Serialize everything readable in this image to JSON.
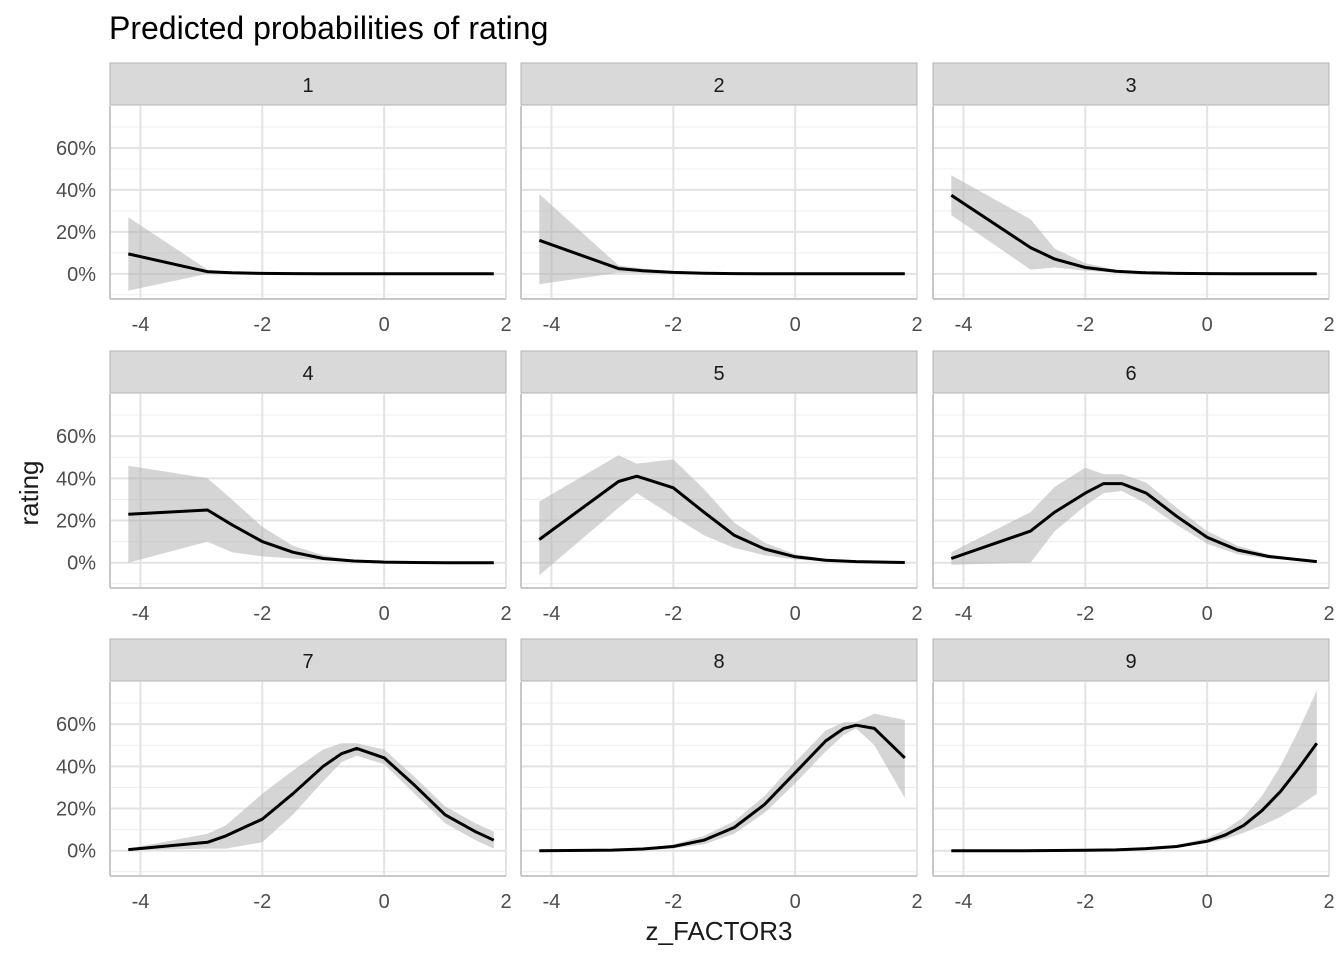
{
  "chart_data": {
    "type": "line",
    "title": "Predicted probabilities of rating",
    "xlabel": "z_FACTOR3",
    "ylabel": "rating",
    "xlim": [
      -4.5,
      2.0
    ],
    "ylim": [
      -0.12,
      0.8
    ],
    "x_ticks": [
      -4,
      -2,
      0,
      2
    ],
    "y_ticks": [
      0,
      0.2,
      0.4,
      0.6
    ],
    "y_tick_labels": [
      "0%",
      "20%",
      "40%",
      "60%"
    ],
    "grid": true,
    "line_color": "#000000",
    "ribbon_color": "#b3b3b3",
    "strip_fill": "#d9d9d9",
    "panels": [
      {
        "name": "1",
        "x": [
          -4.2,
          -2.9,
          -2.5,
          -2.0,
          -1.5,
          -1.0,
          -0.5,
          0.0,
          0.5,
          1.0,
          1.8
        ],
        "y": [
          0.095,
          0.01,
          0.005,
          0.002,
          0.001,
          0.0,
          0.0,
          0.0,
          0.0,
          0.0,
          0.0
        ],
        "low": [
          -0.08,
          0.0,
          0.0,
          0.0,
          0.0,
          0.0,
          0.0,
          0.0,
          0.0,
          0.0,
          0.0
        ],
        "high": [
          0.27,
          0.02,
          0.01,
          0.005,
          0.002,
          0.001,
          0.0,
          0.0,
          0.0,
          0.0,
          0.0
        ]
      },
      {
        "name": "2",
        "x": [
          -4.2,
          -2.9,
          -2.5,
          -2.0,
          -1.5,
          -1.0,
          -0.5,
          0.0,
          0.5,
          1.0,
          1.8
        ],
        "y": [
          0.16,
          0.025,
          0.015,
          0.007,
          0.003,
          0.001,
          0.0,
          0.0,
          0.0,
          0.0,
          0.0
        ],
        "low": [
          -0.05,
          0.005,
          0.003,
          0.001,
          0.0,
          0.0,
          0.0,
          0.0,
          0.0,
          0.0,
          0.0
        ],
        "high": [
          0.38,
          0.04,
          0.025,
          0.012,
          0.005,
          0.002,
          0.001,
          0.0,
          0.0,
          0.0,
          0.0
        ]
      },
      {
        "name": "3",
        "x": [
          -4.2,
          -2.9,
          -2.5,
          -2.0,
          -1.5,
          -1.0,
          -0.5,
          0.0,
          0.5,
          1.0,
          1.8
        ],
        "y": [
          0.375,
          0.125,
          0.07,
          0.03,
          0.012,
          0.005,
          0.002,
          0.001,
          0.0,
          0.0,
          0.0
        ],
        "low": [
          0.28,
          0.02,
          0.03,
          0.015,
          0.005,
          0.002,
          0.001,
          0.0,
          0.0,
          0.0,
          0.0
        ],
        "high": [
          0.47,
          0.26,
          0.12,
          0.05,
          0.02,
          0.008,
          0.003,
          0.001,
          0.0,
          0.0,
          0.0
        ]
      },
      {
        "name": "4",
        "x": [
          -4.2,
          -2.9,
          -2.5,
          -2.0,
          -1.5,
          -1.0,
          -0.5,
          0.0,
          0.5,
          1.0,
          1.8
        ],
        "y": [
          0.23,
          0.25,
          0.18,
          0.1,
          0.05,
          0.02,
          0.008,
          0.003,
          0.001,
          0.0,
          0.0
        ],
        "low": [
          0.0,
          0.1,
          0.05,
          0.03,
          0.02,
          0.01,
          0.004,
          0.001,
          0.0,
          0.0,
          0.0
        ],
        "high": [
          0.46,
          0.4,
          0.3,
          0.17,
          0.08,
          0.035,
          0.013,
          0.005,
          0.002,
          0.0,
          0.0
        ]
      },
      {
        "name": "5",
        "x": [
          -4.2,
          -2.9,
          -2.6,
          -2.0,
          -1.5,
          -1.0,
          -0.5,
          0.0,
          0.5,
          1.0,
          1.8
        ],
        "y": [
          0.11,
          0.385,
          0.41,
          0.355,
          0.24,
          0.13,
          0.065,
          0.028,
          0.012,
          0.005,
          0.001
        ],
        "low": [
          -0.06,
          0.26,
          0.33,
          0.22,
          0.13,
          0.07,
          0.035,
          0.015,
          0.006,
          0.002,
          0.0
        ],
        "high": [
          0.29,
          0.51,
          0.47,
          0.49,
          0.35,
          0.19,
          0.095,
          0.04,
          0.018,
          0.008,
          0.002
        ]
      },
      {
        "name": "6",
        "x": [
          -4.2,
          -2.9,
          -2.5,
          -2.0,
          -1.7,
          -1.4,
          -1.0,
          -0.5,
          0.0,
          0.5,
          1.0,
          1.8
        ],
        "y": [
          0.02,
          0.15,
          0.24,
          0.33,
          0.375,
          0.375,
          0.33,
          0.22,
          0.12,
          0.06,
          0.03,
          0.005
        ],
        "low": [
          -0.01,
          0.0,
          0.15,
          0.27,
          0.33,
          0.34,
          0.28,
          0.18,
          0.09,
          0.04,
          0.02,
          0.003
        ],
        "high": [
          0.05,
          0.24,
          0.36,
          0.45,
          0.42,
          0.42,
          0.38,
          0.26,
          0.15,
          0.08,
          0.04,
          0.008
        ]
      },
      {
        "name": "7",
        "x": [
          -4.2,
          -2.9,
          -2.6,
          -2.0,
          -1.5,
          -1.0,
          -0.7,
          -0.45,
          0.0,
          0.5,
          1.0,
          1.5,
          1.8
        ],
        "y": [
          0.005,
          0.04,
          0.07,
          0.15,
          0.27,
          0.4,
          0.46,
          0.485,
          0.44,
          0.31,
          0.17,
          0.09,
          0.05
        ],
        "low": [
          0.002,
          0.01,
          0.01,
          0.04,
          0.17,
          0.33,
          0.42,
          0.45,
          0.41,
          0.27,
          0.13,
          0.05,
          0.01
        ],
        "high": [
          0.01,
          0.08,
          0.12,
          0.27,
          0.38,
          0.48,
          0.51,
          0.51,
          0.48,
          0.35,
          0.21,
          0.13,
          0.09
        ]
      },
      {
        "name": "8",
        "x": [
          -4.2,
          -3.0,
          -2.5,
          -2.0,
          -1.5,
          -1.0,
          -0.5,
          0.0,
          0.5,
          0.8,
          1.0,
          1.3,
          1.8
        ],
        "y": [
          0.0,
          0.003,
          0.008,
          0.02,
          0.05,
          0.11,
          0.22,
          0.37,
          0.52,
          0.58,
          0.595,
          0.58,
          0.44
        ],
        "low": [
          0.0,
          0.001,
          0.004,
          0.012,
          0.03,
          0.08,
          0.18,
          0.32,
          0.47,
          0.55,
          0.58,
          0.5,
          0.25
        ],
        "high": [
          0.0,
          0.005,
          0.012,
          0.03,
          0.07,
          0.14,
          0.26,
          0.42,
          0.57,
          0.61,
          0.61,
          0.65,
          0.62
        ]
      },
      {
        "name": "9",
        "x": [
          -4.2,
          -3.0,
          -2.0,
          -1.5,
          -1.0,
          -0.5,
          0.0,
          0.3,
          0.6,
          0.9,
          1.2,
          1.5,
          1.8
        ],
        "y": [
          0.0,
          0.0,
          0.002,
          0.004,
          0.01,
          0.02,
          0.045,
          0.075,
          0.12,
          0.19,
          0.28,
          0.39,
          0.51
        ],
        "low": [
          0.0,
          0.0,
          0.001,
          0.003,
          0.007,
          0.015,
          0.035,
          0.055,
          0.085,
          0.12,
          0.16,
          0.21,
          0.27
        ],
        "high": [
          0.0,
          0.0,
          0.003,
          0.006,
          0.013,
          0.027,
          0.06,
          0.1,
          0.16,
          0.26,
          0.4,
          0.57,
          0.76
        ]
      }
    ]
  }
}
